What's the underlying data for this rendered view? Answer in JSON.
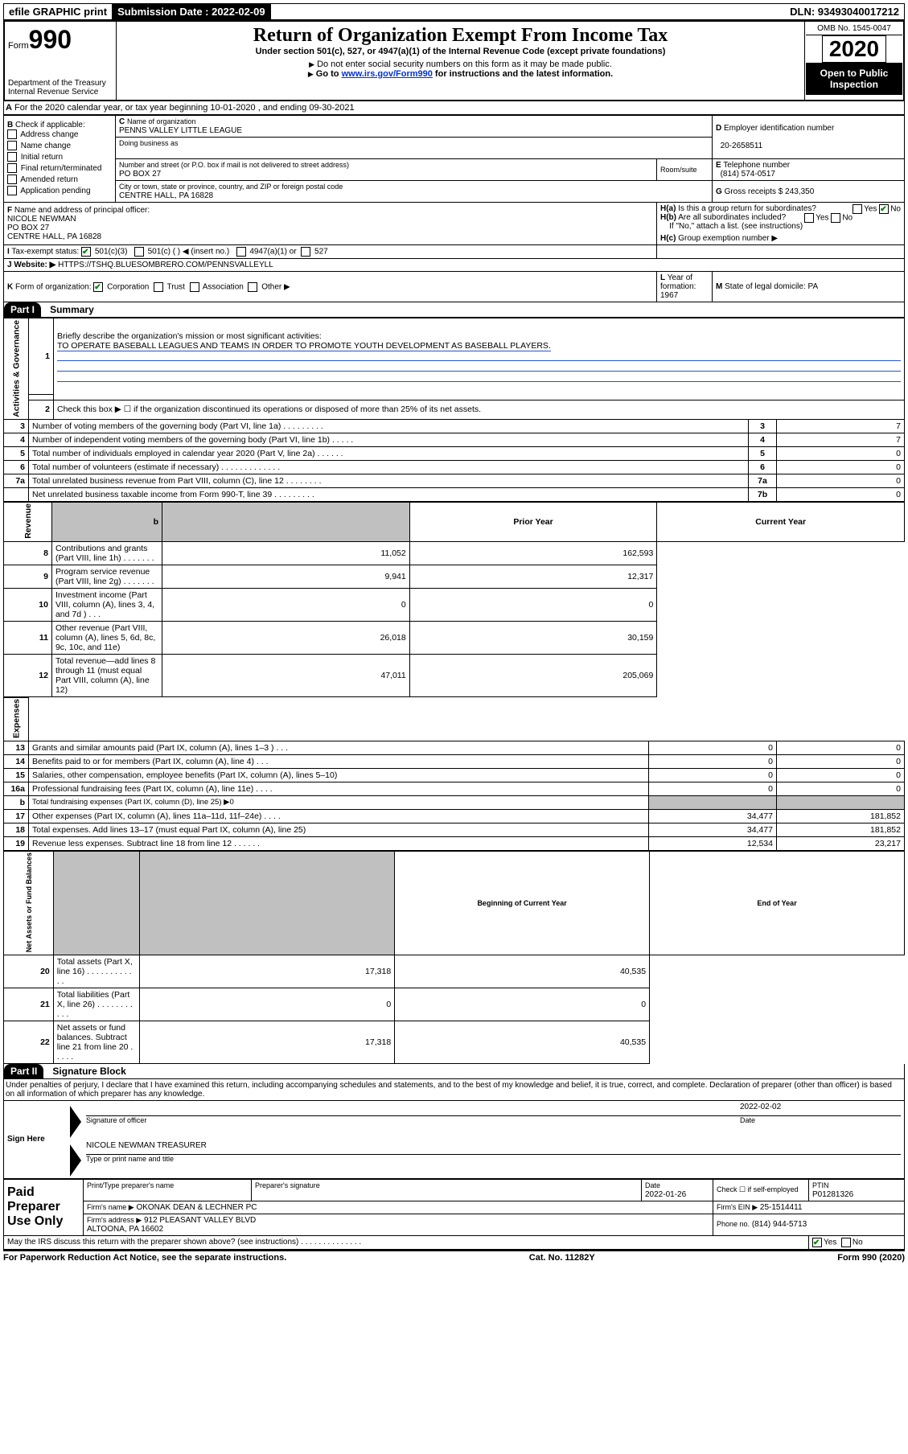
{
  "topbar": {
    "efile": "efile GRAPHIC print",
    "submission_label": "Submission Date : 2022-02-09",
    "dln": "DLN: 93493040017212"
  },
  "header": {
    "form_word": "Form",
    "form_no": "990",
    "dept": "Department of the Treasury\nInternal Revenue Service",
    "title": "Return of Organization Exempt From Income Tax",
    "subtitle": "Under section 501(c), 527, or 4947(a)(1) of the Internal Revenue Code (except private foundations)",
    "note1": "Do not enter social security numbers on this form as it may be made public.",
    "note2_pre": "Go to ",
    "note2_link": "www.irs.gov/Form990",
    "note2_post": " for instructions and the latest information.",
    "omb": "OMB No. 1545-0047",
    "year": "2020",
    "open": "Open to Public Inspection"
  },
  "secA": {
    "period": "For the 2020 calendar year, or tax year beginning 10-01-2020    , and ending 09-30-2021",
    "B_label": "Check if applicable:",
    "B_opts": [
      "Address change",
      "Name change",
      "Initial return",
      "Final return/terminated",
      "Amended return",
      "Application pending"
    ],
    "C_name_lbl": "Name of organization",
    "C_name": "PENNS VALLEY LITTLE LEAGUE",
    "dba_lbl": "Doing business as",
    "dba": "",
    "addr_lbl": "Number and street (or P.O. box if mail is not delivered to street address)",
    "room_lbl": "Room/suite",
    "addr": "PO BOX 27",
    "city_lbl": "City or town, state or province, country, and ZIP or foreign postal code",
    "city": "CENTRE HALL, PA  16828",
    "D_lbl": "Employer identification number",
    "D_val": "20-2658511",
    "E_lbl": "Telephone number",
    "E_val": "(814) 574-0517",
    "G_lbl": "Gross receipts $",
    "G_val": "243,350",
    "F_lbl": "Name and address of principal officer:",
    "F_val": "NICOLE NEWMAN\nPO BOX 27\nCENTRE HALL, PA  16828",
    "Ha_lbl": "Is this a group return for subordinates?",
    "Hb_lbl": "Are all subordinates included?",
    "Hb_note": "If \"No,\" attach a list. (see instructions)",
    "Hc_lbl": "Group exemption number",
    "I_lbl": "Tax-exempt status:",
    "I_501c3": "501(c)(3)",
    "I_501c": "501(c) (  )",
    "I_insert": "(insert no.)",
    "I_4947": "4947(a)(1) or",
    "I_527": "527",
    "J_lbl": "Website:",
    "J_val": "HTTPS://TSHQ.BLUESOMBRERO.COM/PENNSVALLEYLL",
    "K_lbl": "Form of organization:",
    "K_corp": "Corporation",
    "K_trust": "Trust",
    "K_assoc": "Association",
    "K_other": "Other",
    "L_lbl": "Year of formation:",
    "L_val": "1967",
    "M_lbl": "State of legal domicile:",
    "M_val": "PA"
  },
  "part1": {
    "hdr": "Part I",
    "title": "Summary",
    "line1_lbl": "Briefly describe the organization's mission or most significant activities:",
    "line1_val": "TO OPERATE BASEBALL LEAGUES AND TEAMS IN ORDER TO PROMOTE YOUTH DEVELOPMENT AS BASEBALL PLAYERS.",
    "line2": "Check this box ▶ ☐  if the organization discontinued its operations or disposed of more than 25% of its net assets.",
    "gov_rows": [
      {
        "n": "3",
        "t": "Number of voting members of the governing body (Part VI, line 1a)   .    .    .    .    .    .    .    .    .",
        "k": "3",
        "v": "7"
      },
      {
        "n": "4",
        "t": "Number of independent voting members of the governing body (Part VI, line 1b)    .    .    .    .    .",
        "k": "4",
        "v": "7"
      },
      {
        "n": "5",
        "t": "Total number of individuals employed in calendar year 2020 (Part V, line 2a)    .    .    .    .    .    .",
        "k": "5",
        "v": "0"
      },
      {
        "n": "6",
        "t": "Total number of volunteers (estimate if necessary)    .    .    .    .    .    .    .    .    .    .    .    .    .",
        "k": "6",
        "v": "0"
      },
      {
        "n": "7a",
        "t": "Total unrelated business revenue from Part VIII, column (C), line 12    .    .    .    .    .    .    .    .",
        "k": "7a",
        "v": "0"
      },
      {
        "n": "",
        "t": "Net unrelated business taxable income from Form 990-T, line 39    .    .    .    .    .    .    .    .    .",
        "k": "7b",
        "v": "0"
      }
    ],
    "prior_hdr": "Prior Year",
    "curr_hdr": "Current Year",
    "rev_rows": [
      {
        "n": "8",
        "t": "Contributions and grants (Part VIII, line 1h)    .    .    .    .    .    .    .",
        "p": "11,052",
        "c": "162,593"
      },
      {
        "n": "9",
        "t": "Program service revenue (Part VIII, line 2g)    .    .    .    .    .    .    .",
        "p": "9,941",
        "c": "12,317"
      },
      {
        "n": "10",
        "t": "Investment income (Part VIII, column (A), lines 3, 4, and 7d )    .    .    .",
        "p": "0",
        "c": "0"
      },
      {
        "n": "11",
        "t": "Other revenue (Part VIII, column (A), lines 5, 6d, 8c, 9c, 10c, and 11e)",
        "p": "26,018",
        "c": "30,159"
      },
      {
        "n": "12",
        "t": "Total revenue—add lines 8 through 11 (must equal Part VIII, column (A), line 12)",
        "p": "47,011",
        "c": "205,069"
      }
    ],
    "exp_rows": [
      {
        "n": "13",
        "t": "Grants and similar amounts paid (Part IX, column (A), lines 1–3 )    .    .    .",
        "p": "0",
        "c": "0"
      },
      {
        "n": "14",
        "t": "Benefits paid to or for members (Part IX, column (A), line 4)    .    .    .",
        "p": "0",
        "c": "0"
      },
      {
        "n": "15",
        "t": "Salaries, other compensation, employee benefits (Part IX, column (A), lines 5–10)",
        "p": "0",
        "c": "0"
      },
      {
        "n": "16a",
        "t": "Professional fundraising fees (Part IX, column (A), line 11e)    .    .    .    .",
        "p": "0",
        "c": "0"
      },
      {
        "n": "b",
        "t": "Total fundraising expenses (Part IX, column (D), line 25) ▶0",
        "p": "GRAY",
        "c": "GRAY"
      },
      {
        "n": "17",
        "t": "Other expenses (Part IX, column (A), lines 11a–11d, 11f–24e)    .    .    .    .",
        "p": "34,477",
        "c": "181,852"
      },
      {
        "n": "18",
        "t": "Total expenses. Add lines 13–17 (must equal Part IX, column (A), line 25)",
        "p": "34,477",
        "c": "181,852"
      },
      {
        "n": "19",
        "t": "Revenue less expenses. Subtract line 18 from line 12    .    .    .    .    .    .",
        "p": "12,534",
        "c": "23,217"
      }
    ],
    "na_hdr_p": "Beginning of Current Year",
    "na_hdr_c": "End of Year",
    "na_rows": [
      {
        "n": "20",
        "t": "Total assets (Part X, line 16)    .    .    .    .    .    .    .    .    .    .    .    .",
        "p": "17,318",
        "c": "40,535"
      },
      {
        "n": "21",
        "t": "Total liabilities (Part X, line 26)    .    .    .    .    .    .    .    .    .    .    .",
        "p": "0",
        "c": "0"
      },
      {
        "n": "22",
        "t": "Net assets or fund balances. Subtract line 21 from line 20    .    .    .    .    .",
        "p": "17,318",
        "c": "40,535"
      }
    ],
    "vert_gov": "Activities & Governance",
    "vert_rev": "Revenue",
    "vert_exp": "Expenses",
    "vert_na": "Net Assets or Fund Balances"
  },
  "part2": {
    "hdr": "Part II",
    "title": "Signature Block",
    "decl": "Under penalties of perjury, I declare that I have examined this return, including accompanying schedules and statements, and to the best of my knowledge and belief, it is true, correct, and complete. Declaration of preparer (other than officer) is based on all information of which preparer has any knowledge.",
    "sign_here": "Sign Here",
    "sig_officer": "Signature of officer",
    "sig_date": "Date",
    "sig_date_val": "2022-02-02",
    "sig_name": "NICOLE NEWMAN  TREASURER",
    "sig_name_lbl": "Type or print name and title",
    "paid": "Paid Preparer Use Only",
    "prep_name_lbl": "Print/Type preparer's name",
    "prep_sig_lbl": "Preparer's signature",
    "prep_date_lbl": "Date",
    "prep_date": "2022-01-26",
    "prep_self": "Check ☐ if self-employed",
    "ptin_lbl": "PTIN",
    "ptin": "P01281326",
    "firm_name_lbl": "Firm's name   ▶",
    "firm_name": "OKONAK DEAN & LECHNER PC",
    "firm_ein_lbl": "Firm's EIN ▶",
    "firm_ein": "25-1514411",
    "firm_addr_lbl": "Firm's address ▶",
    "firm_addr": "912 PLEASANT VALLEY BLVD\nALTOONA, PA  16602",
    "firm_phone_lbl": "Phone no.",
    "firm_phone": "(814) 944-5713",
    "discuss": "May the IRS discuss this return with the preparer shown above? (see instructions)    .    .    .    .    .    .    .    .    .    .    .    .    .    .",
    "yes": "Yes",
    "no": "No"
  },
  "footer": {
    "pra": "For Paperwork Reduction Act Notice, see the separate instructions.",
    "cat": "Cat. No. 11282Y",
    "form": "Form 990 (2020)"
  }
}
